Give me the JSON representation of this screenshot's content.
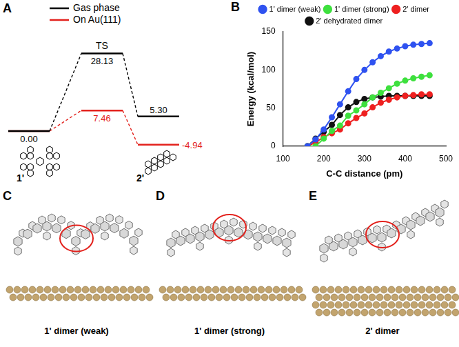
{
  "panel_a": {
    "letter": "A",
    "type": "energy_diagram",
    "states": [
      "1'",
      "TS",
      "2'"
    ],
    "series": [
      {
        "name": "Gas phase",
        "color": "#000000",
        "values": [
          0.0,
          28.13,
          5.3
        ],
        "value_labels": [
          "0.00",
          "28.13",
          "5.30"
        ]
      },
      {
        "name": "On Au(111)",
        "color": "#e3211c",
        "values": [
          0.0,
          7.46,
          -4.94
        ],
        "value_labels": [
          null,
          "7.46",
          "-4.94"
        ]
      }
    ]
  },
  "chart_data": {
    "letter": "B",
    "type": "line",
    "xlabel": "C-C distance (pm)",
    "ylabel": "Energy (kcal/mol)",
    "x": [
      160,
      180,
      200,
      220,
      240,
      260,
      280,
      300,
      320,
      340,
      360,
      380,
      400,
      420,
      440,
      460
    ],
    "series": [
      {
        "name": "1' dimer (weak)",
        "color": "#2f52f0",
        "values": [
          0,
          9,
          22,
          38,
          55,
          72,
          88,
          100,
          110,
          118,
          124,
          128,
          131,
          133,
          134,
          135
        ]
      },
      {
        "name": "1' dimer (strong)",
        "color": "#3ee03e",
        "values": [
          0,
          0,
          10,
          20,
          27,
          40,
          47,
          55,
          64,
          70,
          76,
          82,
          86,
          89,
          91,
          93
        ]
      },
      {
        "name": "2' dimer",
        "color": "#ee2020",
        "values": [
          0,
          5,
          12,
          17,
          22,
          30,
          37,
          43,
          51,
          57,
          61,
          64,
          66,
          67,
          68,
          68
        ]
      },
      {
        "name": "2' dehydrated dimer",
        "color": "#111111",
        "values": [
          0,
          10,
          19,
          28,
          41,
          51,
          58,
          62,
          64,
          65,
          66,
          66,
          66,
          66,
          66,
          66
        ]
      }
    ],
    "xlim": [
      100,
      500
    ],
    "xticks": [
      100,
      200,
      300,
      400,
      500
    ],
    "ylim": [
      0,
      150
    ],
    "yticks": [
      0,
      50,
      100,
      150
    ],
    "grid": false,
    "legend": "top",
    "marker": "circle"
  },
  "structures": [
    {
      "letter": "C",
      "label": "1' dimer (weak)"
    },
    {
      "letter": "D",
      "label": "1' dimer (strong)"
    },
    {
      "letter": "E",
      "label": "2' dimer"
    }
  ]
}
